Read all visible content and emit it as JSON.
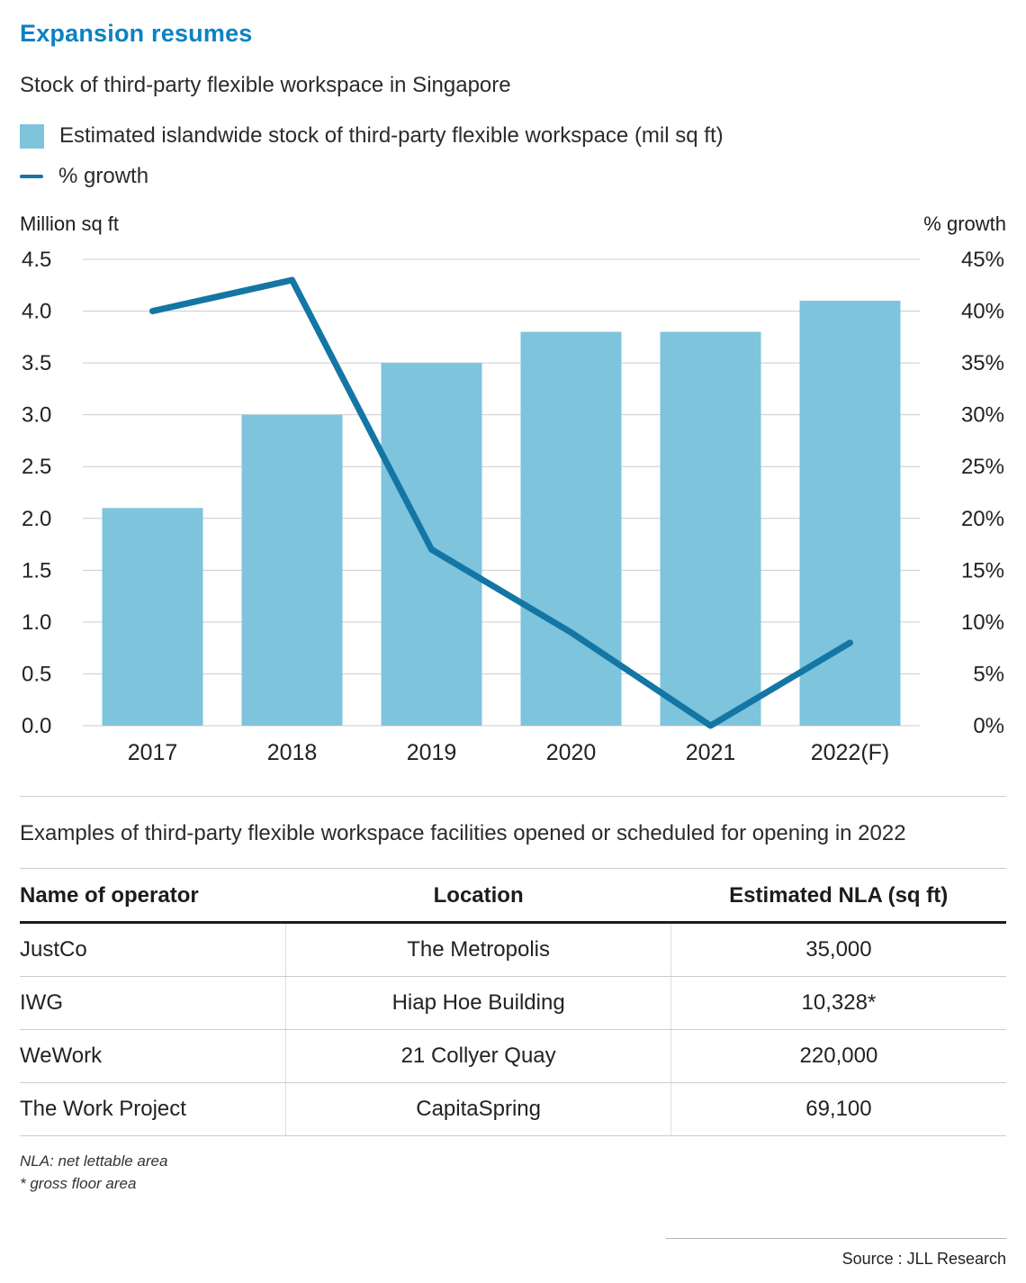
{
  "page": {
    "title": "Expansion resumes",
    "subtitle": "Stock of third-party flexible workspace in Singapore",
    "section_note": "Examples of third-party flexible workspace facilities opened or scheduled for opening in 2022",
    "footnotes": [
      "NLA: net lettable area",
      "* gross floor area"
    ],
    "source": "Source : JLL Research"
  },
  "colors": {
    "title_blue": "#0b82c0",
    "bar_fill": "#7ec4dd",
    "line_stroke": "#1476a4",
    "grid": "#cccccc",
    "text_dark": "#1c1c1c"
  },
  "legend": [
    {
      "type": "square",
      "label": "Estimated islandwide stock of third-party flexible workspace (mil sq ft)"
    },
    {
      "type": "line",
      "label": "% growth"
    }
  ],
  "chart_data": {
    "type": "bar+line",
    "categories": [
      "2017",
      "2018",
      "2019",
      "2020",
      "2021",
      "2022(F)"
    ],
    "series": [
      {
        "name": "Estimated islandwide stock of third-party flexible workspace (mil sq ft)",
        "type": "bar",
        "axis": "left",
        "values": [
          2.1,
          3.0,
          3.5,
          3.8,
          3.8,
          4.1
        ]
      },
      {
        "name": "% growth",
        "type": "line",
        "axis": "right",
        "values": [
          40,
          43,
          17,
          9,
          0,
          8
        ]
      }
    ],
    "left_axis": {
      "title": "Million sq ft",
      "min": 0,
      "max": 4.5,
      "step": 0.5,
      "tick_labels": [
        "0.0",
        "0.5",
        "1.0",
        "1.5",
        "2.0",
        "2.5",
        "3.0",
        "3.5",
        "4.0",
        "4.5"
      ]
    },
    "right_axis": {
      "title": "% growth",
      "min": 0,
      "max": 45,
      "step": 5,
      "tick_labels": [
        "0%",
        "5%",
        "10%",
        "15%",
        "20%",
        "25%",
        "30%",
        "35%",
        "40%",
        "45%"
      ]
    },
    "grid": true,
    "legend_position": "top"
  },
  "operators_table": {
    "headers": [
      "Name of operator",
      "Location",
      "Estimated NLA (sq ft)"
    ],
    "rows": [
      [
        "JustCo",
        "The Metropolis",
        "35,000"
      ],
      [
        "IWG",
        "Hiap Hoe Building",
        "10,328*"
      ],
      [
        "WeWork",
        "21 Collyer Quay",
        "220,000"
      ],
      [
        "The Work Project",
        "CapitaSpring",
        "69,100"
      ]
    ]
  }
}
